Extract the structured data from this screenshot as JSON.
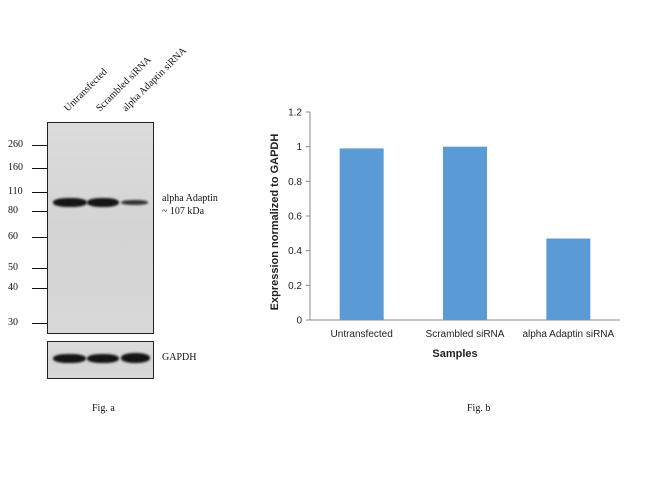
{
  "figure_a": {
    "lane_labels": [
      "Untransfected",
      "Scrambled siRNA",
      "alpha Adaptin siRNA"
    ],
    "mw_markers": [
      "260",
      "160",
      "110",
      "80",
      "60",
      "50",
      "40",
      "30"
    ],
    "band_label_line1": "alpha Adaptin",
    "band_label_line2": "~ 107 kDa",
    "loading_control_label": "GAPDH",
    "caption": "Fig. a"
  },
  "figure_b": {
    "caption": "Fig. b"
  },
  "chart_data": {
    "type": "bar",
    "categories": [
      "Untransfected",
      "Scrambled siRNA",
      "alpha Adaptin siRNA"
    ],
    "values": [
      0.99,
      1.0,
      0.47
    ],
    "title": "",
    "xlabel": "Samples",
    "ylabel": "Expression  normalized to GAPDH",
    "ylim": [
      0,
      1.2
    ],
    "yticks": [
      "0",
      "0.2",
      "0.4",
      "0.6",
      "0.8",
      "1",
      "1.2"
    ],
    "bar_color": "#5b9bd5",
    "grid": false,
    "legend": "none"
  }
}
